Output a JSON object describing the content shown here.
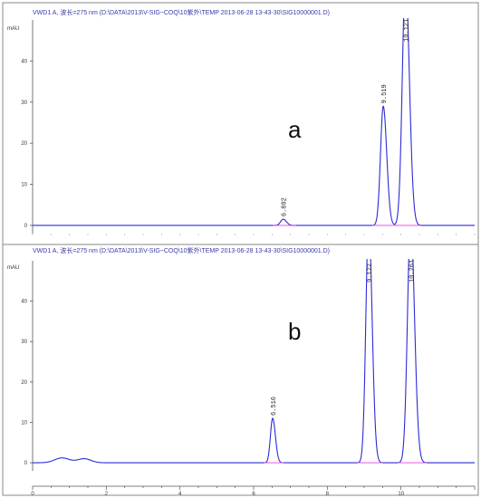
{
  "chart_data": [
    {
      "type": "line",
      "panel_letter": "a",
      "header": "VWD1 A, 波长=275 nm (D:\\DATA\\2013\\V-SIG~COQ\\10紫外\\TEMP 2013-06-28 13-43-30\\SIG10000001.D)",
      "ylabel": "mAU",
      "ylim": [
        -2,
        50
      ],
      "xlim": [
        0,
        12
      ],
      "yticks": [
        "0",
        "10",
        "20",
        "30",
        "40"
      ],
      "ytick_values": [
        0,
        10,
        20,
        30,
        40
      ],
      "peaks": [
        {
          "rt": 6.802,
          "label": "6.802",
          "height": 1.5,
          "width": 0.07
        },
        {
          "rt": 9.519,
          "label": "9.519",
          "height": 29,
          "width": 0.075
        },
        {
          "rt": 10.121,
          "label": "10.121",
          "height": 60,
          "width": 0.085
        }
      ],
      "series_color": "#2b2bd6",
      "baseline_color": "#e040e0"
    },
    {
      "type": "line",
      "panel_letter": "b",
      "header": "VWD1 A, 波长=275 nm (D:\\DATA\\2013\\V-SIG~COQ\\10紫外\\TEMP 2013-06-28 13-43-30\\SIG10000001.D)",
      "ylabel": "mAU",
      "ylim": [
        -2,
        50
      ],
      "xlim": [
        0,
        12
      ],
      "yticks": [
        "0",
        "10",
        "20",
        "30",
        "40"
      ],
      "ytick_values": [
        0,
        10,
        20,
        30,
        40
      ],
      "xticks": [
        "0",
        "2",
        "4",
        "6",
        "8",
        "10"
      ],
      "xtick_values": [
        0,
        2,
        4,
        6,
        8,
        10
      ],
      "bumps": [
        {
          "rt": 0.8,
          "height": 1.2,
          "width": 0.2
        },
        {
          "rt": 1.4,
          "height": 1.0,
          "width": 0.18
        }
      ],
      "peaks": [
        {
          "rt": 6.516,
          "label": "6.516",
          "height": 11,
          "width": 0.06
        },
        {
          "rt": 9.122,
          "label": "9.122",
          "height": 60,
          "width": 0.075
        },
        {
          "rt": 10.261,
          "label": "10.261",
          "height": 60,
          "width": 0.085
        }
      ],
      "series_color": "#2b2bd6",
      "baseline_color": "#e040e0"
    }
  ]
}
